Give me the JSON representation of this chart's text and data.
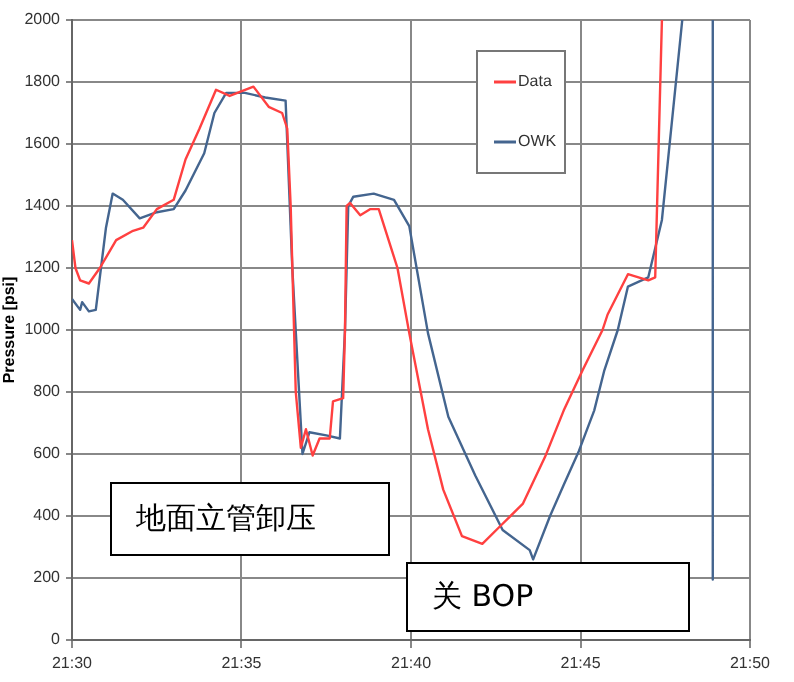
{
  "chart_data": {
    "type": "line",
    "ylabel": "Pressure [psi]",
    "xlim": [
      21.5,
      21.8333
    ],
    "xticks": [
      {
        "value": 21.5,
        "label": "21:30"
      },
      {
        "value": 21.5833,
        "label": "21:35"
      },
      {
        "value": 21.6667,
        "label": "21:40"
      },
      {
        "value": 21.75,
        "label": "21:45"
      },
      {
        "value": 21.8333,
        "label": "21:50"
      }
    ],
    "ylim": [
      0,
      2000
    ],
    "yticks": [
      0,
      200,
      400,
      600,
      800,
      1000,
      1200,
      1400,
      1600,
      1800,
      2000
    ],
    "grid": true,
    "legend": "top right",
    "marker": "none",
    "line_style": "solid",
    "series": [
      {
        "name": "Data",
        "color": "#ff4040",
        "x": [
          21.5,
          21.5017,
          21.504,
          21.5083,
          21.5137,
          21.5217,
          21.53,
          21.535,
          21.5417,
          21.55,
          21.5558,
          21.5627,
          21.5708,
          21.5775,
          21.5892,
          21.5967,
          21.6033,
          21.6058,
          21.6075,
          21.61,
          21.6125,
          21.615,
          21.6183,
          21.6217,
          21.6267,
          21.6283,
          21.6333,
          21.6342,
          21.635,
          21.6367,
          21.6417,
          21.6467,
          21.6508,
          21.66,
          21.6658,
          21.675,
          21.6825,
          21.6917,
          21.7017,
          21.7117,
          21.7217,
          21.7325,
          21.7417,
          21.751,
          21.7608,
          21.7633,
          21.7733,
          21.7833,
          21.7867,
          21.79
        ],
        "values": [
          1290,
          1200,
          1160,
          1150,
          1200,
          1290,
          1320,
          1330,
          1390,
          1420,
          1550,
          1650,
          1775,
          1755,
          1785,
          1720,
          1700,
          1650,
          1400,
          800,
          620,
          680,
          595,
          650,
          650,
          770,
          780,
          1000,
          1400,
          1410,
          1370,
          1390,
          1390,
          1200,
          990,
          680,
          485,
          335,
          310,
          375,
          440,
          590,
          740,
          870,
          1000,
          1050,
          1180,
          1160,
          1170,
          2000
        ]
      },
      {
        "name": "OWK",
        "color": "#44658f",
        "x": [
          21.5,
          21.504,
          21.505,
          21.5083,
          21.5117,
          21.5167,
          21.52,
          21.525,
          21.5333,
          21.5417,
          21.55,
          21.5558,
          21.565,
          21.57,
          21.5758,
          21.585,
          21.595,
          21.605,
          21.6083,
          21.6133,
          21.6167,
          21.625,
          21.6317,
          21.6342,
          21.6358,
          21.6383,
          21.6483,
          21.6583,
          21.6658,
          21.675,
          21.685,
          21.6983,
          21.7117,
          21.725,
          21.7267,
          21.735,
          21.7417,
          21.7492,
          21.7567,
          21.7617,
          21.7683,
          21.7733,
          21.78,
          21.7833,
          21.79,
          21.8,
          21.81,
          21.815,
          21.815
        ],
        "values": [
          1100,
          1065,
          1090,
          1060,
          1065,
          1330,
          1440,
          1420,
          1360,
          1380,
          1390,
          1450,
          1570,
          1700,
          1765,
          1765,
          1750,
          1740,
          1200,
          600,
          670,
          660,
          650,
          1000,
          1400,
          1430,
          1440,
          1420,
          1335,
          990,
          720,
          530,
          355,
          290,
          260,
          400,
          500,
          610,
          740,
          870,
          1000,
          1140,
          1160,
          1170,
          1355,
          2000,
          null,
          2000,
          195
        ]
      }
    ],
    "annotations": [
      "地面立管卸压",
      "关 BOP"
    ]
  }
}
